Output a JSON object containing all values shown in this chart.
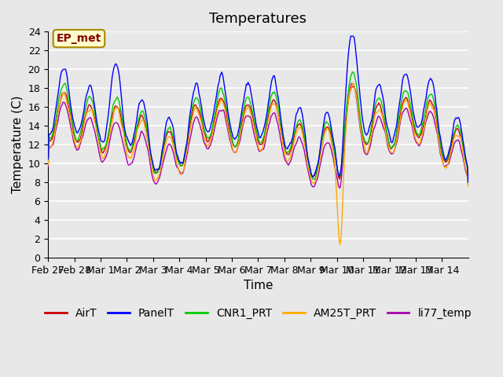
{
  "title": "Temperatures",
  "xlabel": "Time",
  "ylabel": "Temperature (C)",
  "ylim": [
    0,
    24
  ],
  "yticks": [
    0,
    2,
    4,
    6,
    8,
    10,
    12,
    14,
    16,
    18,
    20,
    22,
    24
  ],
  "xtick_labels": [
    "Feb 27",
    "Feb 28",
    "Mar 1",
    "Mar 2",
    "Mar 3",
    "Mar 4",
    "Mar 5",
    "Mar 6",
    "Mar 7",
    "Mar 8",
    "Mar 9",
    "Mar 10",
    "Mar 11",
    "Mar 12",
    "Mar 13",
    "Mar 14"
  ],
  "line_colors": {
    "AirT": "#cc0000",
    "PanelT": "#0000ff",
    "CNR1_PRT": "#00cc00",
    "AM25T_PRT": "#ffaa00",
    "li77_temp": "#aa00aa"
  },
  "annotation_text": "EP_met",
  "annotation_box_facecolor": "#ffffcc",
  "annotation_box_edgecolor": "#aa8800",
  "plot_bg_color": "#e8e8e8",
  "grid_color": "#ffffff",
  "title_fontsize": 13,
  "axis_fontsize": 11,
  "tick_fontsize": 9,
  "legend_fontsize": 10,
  "linewidth": 1.0,
  "n_points": 480
}
